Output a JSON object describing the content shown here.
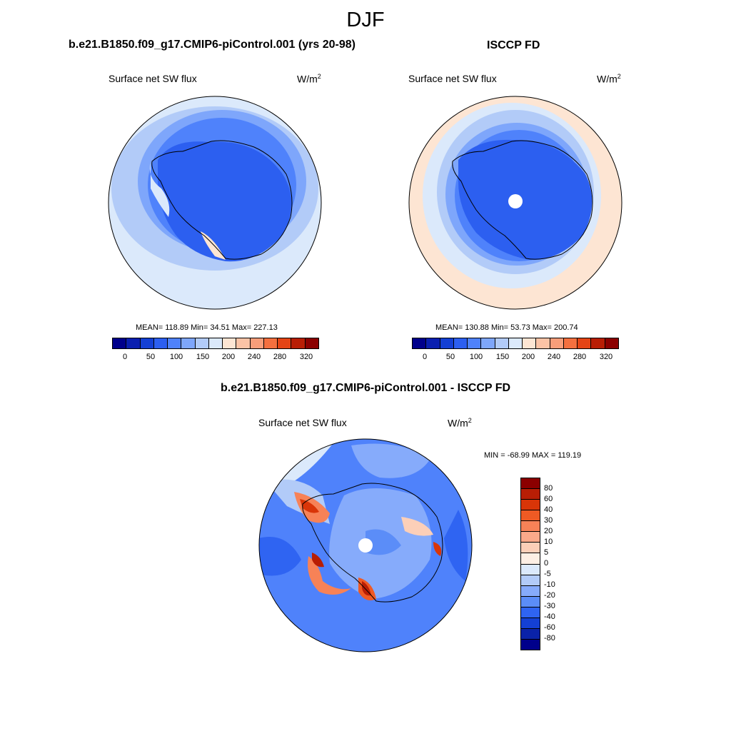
{
  "main_title": "DJF",
  "panels": [
    {
      "title": "b.e21.B1850.f09_g17.CMIP6-piControl.001 (yrs 20-98)",
      "variable": "Surface net SW flux",
      "units": "W/m",
      "units_exp": "2",
      "stats": "MEAN= 118.89  Min=  34.51  Max= 227.13"
    },
    {
      "title": "ISCCP FD",
      "variable": "Surface net SW flux",
      "units": "W/m",
      "units_exp": "2",
      "stats": "MEAN= 130.88  Min=  53.73  Max= 200.74"
    }
  ],
  "diff_panel": {
    "title": "b.e21.B1850.f09_g17.CMIP6-piControl.001 - ISCCP FD",
    "variable": "Surface net SW flux",
    "units": "W/m",
    "units_exp": "2",
    "stats": "MIN = -68.99 MAX = 119.19"
  },
  "colorbar_levels": [
    "0",
    "50",
    "100",
    "150",
    "200",
    "240",
    "280",
    "320"
  ],
  "colorbar_colors": [
    "#00008b",
    "#0a1fb0",
    "#1440d4",
    "#2c5ff0",
    "#4f82fb",
    "#7ea6fb",
    "#b2cbf8",
    "#dbe9fb",
    "#fde5d3",
    "#fbc3a6",
    "#f89e7a",
    "#f4703f",
    "#e44415",
    "#b81e05",
    "#8b0000"
  ],
  "diff_levels": [
    "80",
    "60",
    "40",
    "30",
    "20",
    "10",
    "5",
    "0",
    "-5",
    "-10",
    "-20",
    "-30",
    "-40",
    "-60",
    "-80"
  ],
  "diff_colors": [
    "#8b0000",
    "#b81e05",
    "#d93508",
    "#ef5a24",
    "#f78257",
    "#faa98a",
    "#fccfb8",
    "#fdefe4",
    "#dbe9fb",
    "#b2cbf8",
    "#86abfb",
    "#5b8df8",
    "#2f64f2",
    "#1440d4",
    "#0a22a8",
    "#00008b"
  ]
}
